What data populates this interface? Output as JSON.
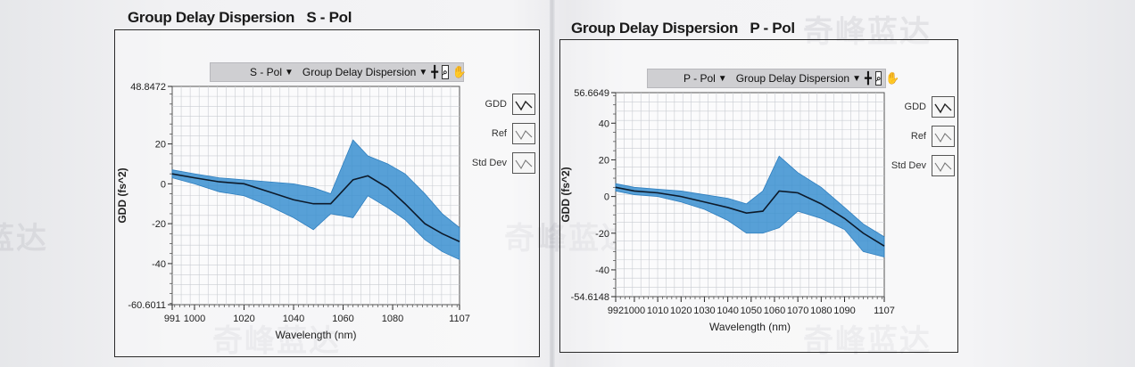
{
  "panels": [
    {
      "title": "Group Delay Dispersion   S - Pol",
      "toolbar": {
        "pol_select": "S - Pol",
        "mode_select": "Group Delay Dispersion"
      },
      "legend": [
        "GDD",
        "Ref",
        "Std Dev"
      ]
    },
    {
      "title": "Group Delay Dispersion   P - Pol",
      "toolbar": {
        "pol_select": "P - Pol",
        "mode_select": "Group Delay Dispersion"
      },
      "legend": [
        "GDD",
        "Ref",
        "Std Dev"
      ]
    }
  ],
  "watermark": "奇峰蓝达",
  "colors": {
    "band": "#3a8fd0",
    "mean": "#0d1a2a",
    "grid": "#c9ccd2"
  },
  "chart_data": [
    {
      "type": "line",
      "title": "Group Delay Dispersion   S - Pol",
      "xlabel": "Wavelength (nm)",
      "ylabel": "GDD (fs^2)",
      "xlim": [
        991,
        1107
      ],
      "ylim": [
        -60.6011,
        48.8472
      ],
      "x_ticks": [
        991,
        1000,
        1020,
        1040,
        1060,
        1080,
        1107
      ],
      "x_tick_labels": [
        "991",
        "1000",
        "1020",
        "1040",
        "1060",
        "1080",
        "1107"
      ],
      "y_ticks": [
        48.8472,
        20,
        0,
        -20,
        -40,
        -60.6011
      ],
      "y_tick_labels": [
        "48.8472",
        "20",
        "0",
        "-20",
        "-40",
        "-60.6011"
      ],
      "grid": true,
      "legend_position": "right",
      "series": [
        {
          "name": "GDD",
          "x": [
            991,
            1000,
            1010,
            1020,
            1030,
            1040,
            1048,
            1055,
            1064,
            1070,
            1078,
            1085,
            1093,
            1100,
            1107
          ],
          "values": [
            5,
            3,
            1,
            0,
            -4,
            -8,
            -10,
            -10,
            2,
            4,
            -2,
            -10,
            -20,
            -25,
            -29
          ]
        },
        {
          "name": "Std Dev upper",
          "x": [
            991,
            1000,
            1010,
            1020,
            1030,
            1040,
            1048,
            1055,
            1064,
            1070,
            1078,
            1085,
            1093,
            1100,
            1107
          ],
          "values": [
            7,
            5,
            3,
            2,
            1,
            0,
            -2,
            -5,
            22,
            14,
            10,
            5,
            -5,
            -15,
            -22
          ]
        },
        {
          "name": "Std Dev lower",
          "x": [
            991,
            1000,
            1010,
            1020,
            1030,
            1040,
            1048,
            1055,
            1064,
            1070,
            1078,
            1085,
            1093,
            1100,
            1107
          ],
          "values": [
            3,
            0,
            -4,
            -6,
            -11,
            -17,
            -23,
            -15,
            -17,
            -6,
            -12,
            -18,
            -28,
            -34,
            -38
          ]
        }
      ]
    },
    {
      "type": "line",
      "title": "Group Delay Dispersion   P - Pol",
      "xlabel": "Wavelength (nm)",
      "ylabel": "GDD (fs^2)",
      "xlim": [
        992,
        1107
      ],
      "ylim": [
        -54.6148,
        56.6649
      ],
      "x_ticks": [
        992,
        1000,
        1010,
        1020,
        1030,
        1040,
        1050,
        1060,
        1070,
        1080,
        1090,
        1107
      ],
      "x_tick_labels": [
        "992",
        "1000",
        "1010",
        "1020",
        "1030",
        "1040",
        "1050",
        "1060",
        "1070",
        "1080",
        "1090",
        "1107"
      ],
      "y_ticks": [
        56.6649,
        40,
        20,
        0,
        -20,
        -40,
        -54.6148
      ],
      "y_tick_labels": [
        "56.6649",
        "40",
        "20",
        "0",
        "-20",
        "-40",
        "-54.6148"
      ],
      "grid": true,
      "legend_position": "right",
      "series": [
        {
          "name": "GDD",
          "x": [
            992,
            1000,
            1010,
            1020,
            1030,
            1040,
            1048,
            1055,
            1062,
            1070,
            1080,
            1090,
            1098,
            1107
          ],
          "values": [
            5,
            3,
            2,
            0,
            -3,
            -6,
            -9,
            -8,
            3,
            2,
            -4,
            -12,
            -20,
            -27
          ]
        },
        {
          "name": "Std Dev upper",
          "x": [
            992,
            1000,
            1010,
            1020,
            1030,
            1040,
            1048,
            1055,
            1062,
            1070,
            1080,
            1090,
            1098,
            1107
          ],
          "values": [
            7,
            5,
            4,
            3,
            1,
            -1,
            -4,
            3,
            22,
            13,
            5,
            -6,
            -15,
            -22
          ]
        },
        {
          "name": "Std Dev lower",
          "x": [
            992,
            1000,
            1010,
            1020,
            1030,
            1040,
            1048,
            1055,
            1062,
            1070,
            1080,
            1090,
            1098,
            1107
          ],
          "values": [
            3,
            1,
            0,
            -3,
            -7,
            -13,
            -20,
            -20,
            -17,
            -8,
            -12,
            -18,
            -30,
            -33
          ]
        }
      ]
    }
  ]
}
